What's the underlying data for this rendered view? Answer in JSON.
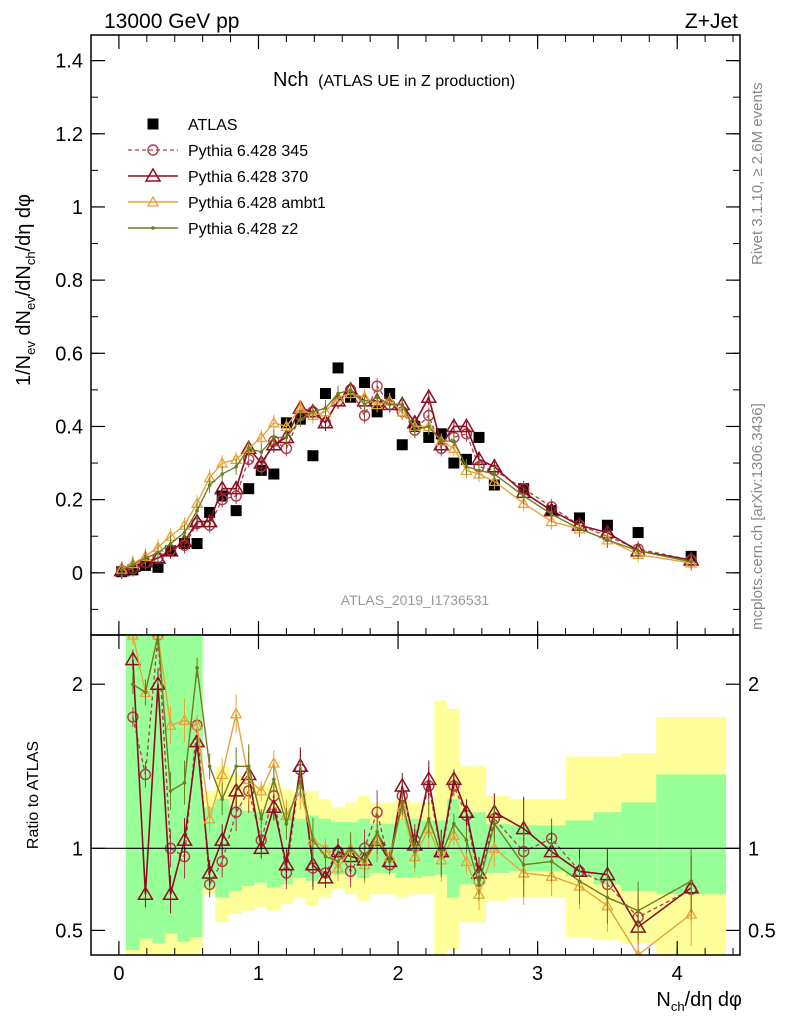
{
  "header": {
    "left": "13000 GeV pp",
    "right": "Z+Jet"
  },
  "side": {
    "rivet": "Rivet 3.1.10,  ≥ 2.6M events",
    "mcplots": "mcplots.cern.ch [arXiv:1306.3436]"
  },
  "colors": {
    "data": "#000000",
    "p345": "#b03a48",
    "p370": "#8b1020",
    "ambt1": "#e8a33a",
    "z2": "#6e7d1e",
    "band_green": "#99ff99",
    "band_yellow": "#ffff99"
  },
  "chart_data": [
    {
      "type": "scatter",
      "title": "Nch",
      "subtitle": "(ATLAS UE in Z production)",
      "watermark": "ATLAS_2019_I1736531",
      "ylabel": "1/N_ev dN_ev/dN_ch/dη dφ",
      "xlim": [
        -0.2,
        4.45
      ],
      "ylim": [
        -0.17,
        1.47
      ],
      "yticks": [
        "0",
        "0.2",
        "0.4",
        "0.6",
        "0.8",
        "1",
        "1.2",
        "1.4"
      ],
      "yticks_values": [
        0,
        0.2,
        0.4,
        0.6,
        0.8,
        1.0,
        1.2,
        1.4
      ],
      "x": [
        0.02,
        0.1,
        0.19,
        0.28,
        0.37,
        0.47,
        0.56,
        0.65,
        0.74,
        0.84,
        0.93,
        1.02,
        1.11,
        1.2,
        1.3,
        1.39,
        1.48,
        1.57,
        1.66,
        1.76,
        1.85,
        1.94,
        2.03,
        2.12,
        2.22,
        2.31,
        2.4,
        2.49,
        2.58,
        2.69,
        2.9,
        3.1,
        3.3,
        3.5,
        3.72,
        4.1
      ],
      "series": [
        {
          "name": "ATLAS",
          "marker": "filled-square",
          "values": [
            0.003,
            0.008,
            0.02,
            0.015,
            0.06,
            0.08,
            0.08,
            0.165,
            0.21,
            0.17,
            0.23,
            0.28,
            0.27,
            0.41,
            0.42,
            0.32,
            0.49,
            0.56,
            0.48,
            0.52,
            0.44,
            0.49,
            0.35,
            0.4,
            0.37,
            0.38,
            0.3,
            0.31,
            0.37,
            0.24,
            0.23,
            0.17,
            0.15,
            0.13,
            0.11,
            0.045
          ]
        },
        {
          "name": "Pythia 6.428 345",
          "marker": "open-circle-dashed",
          "values": [
            0.005,
            0.011,
            0.028,
            0.042,
            0.062,
            0.075,
            0.135,
            0.13,
            0.2,
            0.21,
            0.31,
            0.29,
            0.36,
            0.34,
            0.43,
            0.44,
            0.41,
            0.47,
            0.5,
            0.43,
            0.51,
            0.46,
            0.44,
            0.39,
            0.43,
            0.34,
            0.37,
            0.38,
            0.29,
            0.28,
            0.23,
            0.18,
            0.13,
            0.1,
            0.065,
            0.035
          ]
        },
        {
          "name": "Pythia 6.428 370",
          "marker": "open-triangle",
          "values": [
            0.006,
            0.018,
            0.03,
            0.04,
            0.06,
            0.085,
            0.14,
            0.14,
            0.23,
            0.23,
            0.34,
            0.3,
            0.35,
            0.37,
            0.45,
            0.44,
            0.41,
            0.47,
            0.5,
            0.47,
            0.47,
            0.46,
            0.46,
            0.41,
            0.48,
            0.35,
            0.4,
            0.4,
            0.31,
            0.29,
            0.22,
            0.17,
            0.13,
            0.11,
            0.06,
            0.035
          ]
        },
        {
          "name": "Pythia 6.428 ambt1",
          "marker": "open-triangle-small",
          "values": [
            0.01,
            0.025,
            0.045,
            0.07,
            0.1,
            0.13,
            0.19,
            0.26,
            0.3,
            0.31,
            0.34,
            0.37,
            0.41,
            0.4,
            0.45,
            0.43,
            0.44,
            0.48,
            0.49,
            0.48,
            0.46,
            0.47,
            0.44,
            0.4,
            0.4,
            0.36,
            0.34,
            0.28,
            0.27,
            0.25,
            0.19,
            0.14,
            0.12,
            0.09,
            0.05,
            0.027
          ]
        },
        {
          "name": "Pythia 6.428 z2",
          "marker": "small-dot",
          "values": [
            0.008,
            0.022,
            0.04,
            0.055,
            0.08,
            0.11,
            0.17,
            0.24,
            0.27,
            0.29,
            0.34,
            0.33,
            0.37,
            0.37,
            0.42,
            0.44,
            0.45,
            0.49,
            0.5,
            0.46,
            0.48,
            0.46,
            0.46,
            0.39,
            0.4,
            0.36,
            0.36,
            0.29,
            0.28,
            0.27,
            0.21,
            0.16,
            0.12,
            0.09,
            0.06,
            0.03
          ]
        }
      ]
    },
    {
      "type": "scatter",
      "ylabel": "Ratio to ATLAS",
      "xlabel": "N_ch/dη dφ",
      "xlim": [
        -0.2,
        4.45
      ],
      "ylim": [
        0.35,
        2.3
      ],
      "xticks": [
        "0",
        "1",
        "2",
        "3",
        "4"
      ],
      "xticks_values": [
        0,
        1,
        2,
        3,
        4
      ],
      "yticks": [
        "0.5",
        "1",
        "2"
      ],
      "yticks_values": [
        0.5,
        1,
        2
      ],
      "reference_line": 1,
      "x": [
        0.1,
        0.19,
        0.28,
        0.37,
        0.47,
        0.56,
        0.65,
        0.74,
        0.84,
        0.93,
        1.02,
        1.11,
        1.2,
        1.3,
        1.39,
        1.48,
        1.57,
        1.66,
        1.76,
        1.85,
        1.94,
        2.03,
        2.12,
        2.22,
        2.31,
        2.4,
        2.49,
        2.58,
        2.69,
        2.9,
        3.1,
        3.3,
        3.5,
        3.72,
        4.1
      ],
      "bands": {
        "x_edges": [
          0.05,
          0.15,
          0.24,
          0.33,
          0.42,
          0.51,
          0.6,
          0.69,
          0.79,
          0.88,
          0.97,
          1.06,
          1.16,
          1.25,
          1.34,
          1.43,
          1.52,
          1.62,
          1.71,
          1.8,
          1.89,
          1.98,
          2.08,
          2.17,
          2.26,
          2.35,
          2.44,
          2.54,
          2.63,
          2.8,
          3.0,
          3.2,
          3.4,
          3.6,
          3.85,
          4.35
        ],
        "green_low": [
          0.38,
          0.45,
          0.42,
          0.48,
          0.43,
          0.46,
          0.76,
          0.7,
          0.74,
          0.77,
          0.79,
          0.76,
          0.78,
          0.82,
          0.8,
          0.82,
          0.84,
          0.84,
          0.82,
          0.85,
          0.85,
          0.82,
          0.82,
          0.83,
          0.84,
          0.7,
          0.78,
          0.78,
          0.85,
          0.86,
          0.86,
          0.83,
          0.78,
          0.74,
          0.72
        ],
        "green_high": [
          2.3,
          2.3,
          2.3,
          2.3,
          2.3,
          2.3,
          1.25,
          1.3,
          1.26,
          1.23,
          1.22,
          1.24,
          1.22,
          1.18,
          1.2,
          1.18,
          1.16,
          1.16,
          1.18,
          1.15,
          1.15,
          1.18,
          1.18,
          1.17,
          1.17,
          1.3,
          1.22,
          1.22,
          1.15,
          1.14,
          1.14,
          1.17,
          1.22,
          1.28,
          1.45
        ],
        "yellow_low": [
          0.35,
          0.35,
          0.35,
          0.35,
          0.35,
          0.35,
          0.72,
          0.55,
          0.6,
          0.62,
          0.64,
          0.62,
          0.66,
          0.7,
          0.65,
          0.7,
          0.75,
          0.72,
          0.68,
          0.72,
          0.72,
          0.7,
          0.72,
          0.72,
          0.35,
          0.38,
          0.55,
          0.55,
          0.68,
          0.7,
          0.7,
          0.46,
          0.44,
          0.42,
          0.35
        ],
        "yellow_high": [
          2.3,
          2.3,
          2.3,
          2.3,
          2.3,
          2.3,
          1.35,
          1.5,
          1.45,
          1.4,
          1.38,
          1.4,
          1.36,
          1.3,
          1.35,
          1.3,
          1.25,
          1.28,
          1.32,
          1.28,
          1.28,
          1.3,
          1.28,
          1.28,
          1.9,
          1.85,
          1.5,
          1.5,
          1.32,
          1.3,
          1.3,
          1.56,
          1.56,
          1.58,
          1.8
        ]
      },
      "series": [
        {
          "name": "Pythia 6.428 345",
          "values": [
            1.8,
            1.45,
            2.3,
            1.0,
            0.95,
            1.75,
            0.78,
            0.92,
            1.22,
            1.35,
            1.05,
            1.32,
            0.85,
            1.48,
            0.88,
            0.85,
            0.98,
            0.86,
            1.0,
            1.22,
            0.9,
            1.32,
            1.05,
            1.38,
            0.97,
            1.38,
            1.2,
            0.8,
            1.18,
            0.98,
            1.06,
            0.86,
            0.78,
            0.58,
            0.75
          ]
        },
        {
          "name": "Pythia 6.428 370",
          "values": [
            2.15,
            0.72,
            2.0,
            0.72,
            1.05,
            1.65,
            0.85,
            1.05,
            1.35,
            1.45,
            1.0,
            1.25,
            0.9,
            1.5,
            0.9,
            0.82,
            0.98,
            0.95,
            0.93,
            1.05,
            0.92,
            1.38,
            1.02,
            1.42,
            0.98,
            1.42,
            1.22,
            0.85,
            1.22,
            1.12,
            0.98,
            0.86,
            0.84,
            0.52,
            0.76
          ]
        },
        {
          "name": "Pythia 6.428 ambt1",
          "values": [
            2.3,
            1.95,
            2.3,
            1.75,
            1.78,
            1.75,
            1.18,
            1.45,
            1.82,
            1.42,
            1.35,
            1.52,
            1.2,
            1.35,
            1.05,
            1.0,
            0.88,
            1.0,
            0.9,
            1.05,
            0.95,
            1.25,
            0.95,
            1.12,
            0.93,
            1.08,
            0.92,
            0.72,
            1.0,
            0.85,
            0.83,
            0.77,
            0.65,
            0.35,
            0.6
          ]
        },
        {
          "name": "Pythia 6.428 z2",
          "values": [
            2.0,
            1.95,
            2.3,
            1.35,
            1.4,
            2.1,
            1.5,
            1.3,
            1.5,
            1.5,
            1.18,
            1.42,
            1.15,
            1.42,
            1.05,
            0.95,
            0.92,
            1.0,
            0.92,
            1.1,
            0.92,
            1.28,
            0.98,
            1.18,
            0.96,
            1.15,
            1.05,
            0.78,
            1.15,
            0.9,
            0.92,
            0.8,
            0.7,
            0.62,
            0.8
          ]
        }
      ]
    }
  ]
}
